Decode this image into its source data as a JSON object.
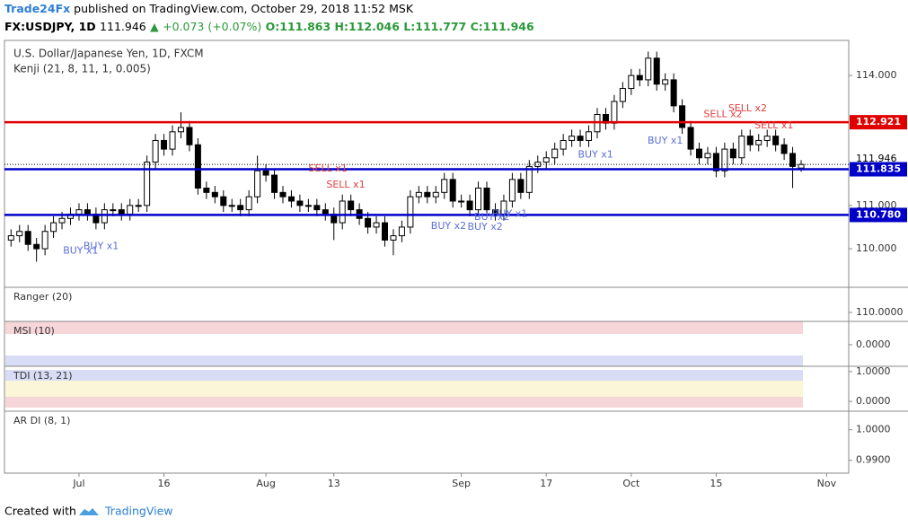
{
  "header": {
    "brand": "Trade24Fx",
    "published": "published on TradingView.com, October 29, 2018 11:52 MSK",
    "symbol": "FX:USDJPY, 1D",
    "price": "111.946",
    "arrow": "▲",
    "change": "+0.073 (+0.07%)",
    "open": "O:111.863",
    "high": "H:112.046",
    "low": "L:111.777",
    "close": "C:111.946"
  },
  "footer": {
    "created": "Created with",
    "brand": "TradingView"
  },
  "chart_data": {
    "type": "candlestick",
    "title": "U.S. Dollar/Japanese Yen, 1D, FXCM",
    "subtitle": "Kenji (21, 8, 11, 1, 0.005)",
    "up_color": "#ffffff",
    "down_color": "#000000",
    "x": [
      -8,
      -7,
      -6,
      -5,
      -4,
      -3,
      -2,
      -1,
      0,
      1,
      2,
      3,
      4,
      5,
      6,
      7,
      8,
      9,
      10,
      11,
      12,
      13,
      14,
      15,
      16,
      17,
      18,
      19,
      20,
      21,
      22,
      23,
      24,
      25,
      26,
      27,
      28,
      29,
      30,
      31,
      32,
      33,
      34,
      35,
      36,
      37,
      38,
      39,
      40,
      41,
      42,
      43,
      44,
      45,
      46,
      47,
      48,
      49,
      50,
      51,
      52,
      53,
      54,
      55,
      56,
      57,
      58,
      59,
      60,
      61,
      62,
      63,
      64,
      65,
      66,
      67,
      68,
      69,
      70,
      71,
      72,
      73,
      74,
      75,
      76,
      77,
      78,
      79,
      80,
      81,
      82,
      83,
      84,
      85
    ],
    "open": [
      110.2,
      110.3,
      110.4,
      110.1,
      110,
      110.4,
      110.6,
      110.7,
      110.8,
      110.9,
      110.8,
      110.6,
      110.9,
      110.9,
      110.8,
      111,
      111,
      112,
      112.5,
      112.3,
      112.7,
      112.8,
      112.4,
      111.4,
      111.3,
      111.2,
      111,
      111,
      110.9,
      111.2,
      111.8,
      111.7,
      111.3,
      111.2,
      111.1,
      111,
      111,
      110.9,
      110.8,
      110.6,
      111.1,
      110.9,
      110.7,
      110.5,
      110.6,
      110.2,
      110.3,
      110.5,
      111.2,
      111.3,
      111.2,
      111.3,
      111.6,
      111.1,
      111.1,
      110.9,
      111.4,
      110.9,
      110.8,
      111.1,
      111.6,
      111.3,
      111.9,
      112,
      112.1,
      112.3,
      112.5,
      112.6,
      112.5,
      112.7,
      113.1,
      112.9,
      113.4,
      113.7,
      114,
      113.9,
      114.4,
      113.8,
      113.9,
      113.3,
      112.8,
      112.3,
      112.1,
      112.2,
      111.8,
      112.3,
      112.1,
      112.6,
      112.4,
      112.5,
      112.6,
      112.4,
      112.2,
      111.863
    ],
    "high": [
      110.45,
      110.55,
      110.55,
      110.25,
      110.55,
      110.75,
      110.85,
      110.95,
      111.05,
      111.05,
      110.95,
      111.05,
      111.05,
      111.05,
      111.15,
      111.15,
      112.15,
      112.65,
      112.65,
      112.85,
      113.15,
      112.95,
      112.55,
      111.55,
      111.45,
      111.35,
      111.15,
      111.15,
      111.35,
      112.15,
      111.95,
      111.85,
      111.45,
      111.35,
      111.25,
      111.15,
      111.15,
      111.05,
      110.95,
      111.25,
      111.25,
      111.05,
      110.85,
      110.75,
      110.75,
      110.45,
      110.65,
      111.35,
      111.45,
      111.45,
      111.45,
      111.75,
      111.75,
      111.25,
      111.25,
      111.55,
      111.55,
      111.05,
      111.25,
      111.75,
      111.75,
      112.05,
      112.15,
      112.25,
      112.45,
      112.65,
      112.75,
      112.75,
      112.85,
      113.25,
      113.25,
      113.55,
      113.85,
      114.15,
      114.15,
      114.55,
      114.55,
      114.05,
      114.05,
      113.45,
      112.95,
      112.45,
      112.35,
      112.35,
      112.45,
      112.45,
      112.75,
      112.75,
      112.65,
      112.75,
      112.75,
      112.55,
      112.35,
      112.046
    ],
    "low": [
      110.05,
      110.15,
      109.95,
      109.7,
      109.85,
      110.25,
      110.45,
      110.55,
      110.65,
      110.65,
      110.45,
      110.45,
      110.75,
      110.65,
      110.65,
      110.85,
      110.85,
      111.85,
      112.15,
      112.15,
      112.55,
      112.25,
      111.25,
      111.15,
      111.05,
      110.85,
      110.85,
      110.75,
      110.75,
      111.05,
      111.55,
      111.15,
      111.05,
      110.95,
      110.85,
      110.85,
      110.75,
      110.65,
      110.2,
      110.45,
      110.75,
      110.55,
      110.35,
      110.35,
      110.05,
      109.85,
      110.15,
      110.35,
      111.05,
      111.05,
      111.05,
      111.15,
      110.95,
      110.95,
      110.75,
      110.75,
      110.75,
      110.65,
      110.65,
      110.95,
      111.15,
      111.15,
      111.75,
      111.85,
      111.95,
      112.15,
      112.35,
      112.35,
      112.35,
      112.55,
      112.75,
      112.75,
      113.25,
      113.55,
      113.75,
      113.75,
      113.65,
      113.65,
      113.15,
      112.65,
      112.15,
      111.95,
      111.95,
      111.65,
      111.65,
      111.95,
      111.95,
      112.25,
      112.25,
      112.35,
      112.25,
      112.05,
      111.4,
      111.777
    ],
    "close": [
      110.3,
      110.4,
      110.1,
      110,
      110.4,
      110.6,
      110.7,
      110.8,
      110.9,
      110.8,
      110.6,
      110.9,
      110.9,
      110.8,
      111,
      111,
      112,
      112.5,
      112.3,
      112.7,
      112.8,
      112.4,
      111.4,
      111.3,
      111.2,
      111,
      111,
      110.9,
      111.2,
      111.8,
      111.7,
      111.3,
      111.2,
      111.1,
      111,
      111,
      110.9,
      110.8,
      110.6,
      111.1,
      110.9,
      110.7,
      110.5,
      110.6,
      110.2,
      110.3,
      110.5,
      111.2,
      111.3,
      111.2,
      111.3,
      111.6,
      111.1,
      111.1,
      110.9,
      111.4,
      110.9,
      110.8,
      111.1,
      111.6,
      111.3,
      111.9,
      112,
      112.1,
      112.3,
      112.5,
      112.6,
      112.5,
      112.7,
      113.1,
      112.9,
      113.4,
      113.7,
      114,
      113.9,
      114.4,
      113.8,
      113.9,
      113.3,
      112.8,
      112.3,
      112.1,
      112.2,
      111.8,
      112.3,
      112.1,
      112.6,
      112.4,
      112.5,
      112.6,
      112.4,
      112.2,
      111.9,
      111.946
    ],
    "xlim": [
      -8.77,
      90.6
    ],
    "xticks": [
      {
        "value": 0,
        "label": "Jul"
      },
      {
        "value": 10,
        "label": "16"
      },
      {
        "value": 22,
        "label": "Aug"
      },
      {
        "value": 30,
        "label": "13"
      },
      {
        "value": 45,
        "label": "Sep"
      },
      {
        "value": 55,
        "label": "17"
      },
      {
        "value": 65,
        "label": "Oct"
      },
      {
        "value": 75,
        "label": "15"
      },
      {
        "value": 88,
        "label": "Nov"
      }
    ],
    "ylim": [
      109.11,
      114.81
    ],
    "yticks": [
      {
        "value": 110,
        "label": "110.000"
      },
      {
        "value": 111,
        "label": "111.000"
      },
      {
        "value": 114,
        "label": "114.000"
      }
    ],
    "levels": [
      {
        "value": 112.921,
        "color": "#e00000"
      },
      {
        "value": 111.835,
        "color": "#0000c8"
      },
      {
        "value": 110.78,
        "label": "110.780",
        "color": "#0000c8"
      }
    ],
    "last_price": 111.946,
    "annotations": [
      {
        "text": "BUY x1",
        "x": 0.2,
        "y": 109.95,
        "color": "#5b6fd6"
      },
      {
        "text": "BUY x1",
        "x": 2.6,
        "y": 110.05,
        "color": "#5b6fd6"
      },
      {
        "text": "SELL x1",
        "x": 29.3,
        "y": 111.85,
        "color": "#e04040"
      },
      {
        "text": "SELL x1",
        "x": 31.4,
        "y": 111.47,
        "color": "#e04040"
      },
      {
        "text": "BUY x2",
        "x": 43.5,
        "y": 110.52,
        "color": "#5b6fd6"
      },
      {
        "text": "BUY x2",
        "x": 47.8,
        "y": 110.5,
        "color": "#5b6fd6"
      },
      {
        "text": "BUY x2",
        "x": 48.6,
        "y": 110.73,
        "color": "#5b6fd6"
      },
      {
        "text": "BUY x1",
        "x": 50.7,
        "y": 110.8,
        "color": "#5b6fd6"
      },
      {
        "text": "BUY x1",
        "x": 60.8,
        "y": 112.17,
        "color": "#5b6fd6"
      },
      {
        "text": "BUY x1",
        "x": 69,
        "y": 112.49,
        "color": "#5b6fd6"
      },
      {
        "text": "SELL x2",
        "x": 75.8,
        "y": 113.1,
        "color": "#e04040"
      },
      {
        "text": "SELL x2",
        "x": 78.7,
        "y": 113.23,
        "color": "#e04040"
      },
      {
        "text": "SELL x1",
        "x": 81.8,
        "y": 112.84,
        "color": "#e04040"
      }
    ],
    "panes": [
      {
        "title": "Ranger (20)",
        "ylim": [
          109.9,
          110.28
        ],
        "yticks": [
          {
            "value": 110,
            "label": "110.0000"
          }
        ]
      },
      {
        "title": "MSI (10)",
        "ylim": [
          -1,
          1.08
        ],
        "yticks": [
          {
            "value": 0,
            "label": "0.0000"
          }
        ]
      },
      {
        "title": "TDI (13, 21)",
        "ylim": [
          -0.33,
          1.18
        ],
        "yticks": [
          {
            "value": 1,
            "label": "1.0000"
          },
          {
            "value": 0,
            "label": "0.0000"
          }
        ]
      },
      {
        "title": "AR DI (8, 1)",
        "ylim": [
          0.9858,
          1.0061
        ],
        "yticks": [
          {
            "value": 1,
            "label": "1.0000"
          },
          {
            "value": 0.99,
            "label": "0.9900"
          }
        ]
      }
    ]
  }
}
